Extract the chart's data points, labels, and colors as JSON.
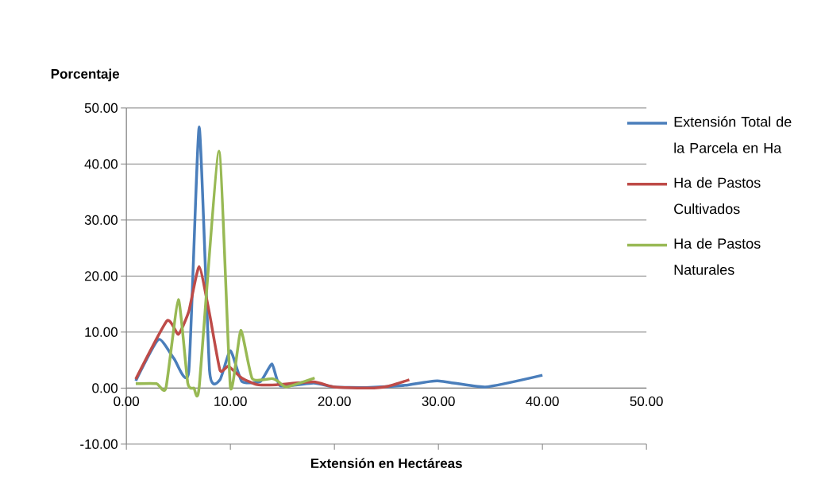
{
  "chart_data": {
    "type": "line",
    "xlabel": "Extensión en Hectáreas",
    "ylabel": "Porcentaje",
    "xlim": [
      0,
      50
    ],
    "ylim": [
      -10,
      50
    ],
    "xticks": [
      {
        "value": 0,
        "label": "0.00"
      },
      {
        "value": 10,
        "label": "10.00"
      },
      {
        "value": 20,
        "label": "20.00"
      },
      {
        "value": 30,
        "label": "30.00"
      },
      {
        "value": 40,
        "label": "40.00"
      },
      {
        "value": 50,
        "label": "50.00"
      }
    ],
    "yticks": [
      {
        "value": -10,
        "label": "-10.00"
      },
      {
        "value": 0,
        "label": "0.00"
      },
      {
        "value": 10,
        "label": "10.00"
      },
      {
        "value": 20,
        "label": "20.00"
      },
      {
        "value": 30,
        "label": "30.00"
      },
      {
        "value": 40,
        "label": "40.00"
      },
      {
        "value": 50,
        "label": "50.00"
      }
    ],
    "grid": "y",
    "legend": "right",
    "marker": "none",
    "line_style": "solid",
    "series": [
      {
        "name": "Extensión Total de la Parcela en Ha",
        "color": "#4a7ebb",
        "x": [
          0.9,
          3.1,
          4.6,
          6.0,
          7.0,
          8.0,
          9.0,
          10.0,
          11.1,
          12.9,
          14.0,
          14.8,
          18.0,
          20.0,
          23.0,
          26.8,
          29.9,
          34.5,
          40.0
        ],
        "values": [
          1.3,
          8.7,
          5.2,
          3.0,
          46.6,
          3.0,
          1.5,
          6.7,
          1.2,
          1.2,
          4.3,
          0.4,
          0.9,
          0.2,
          0.1,
          0.5,
          1.3,
          0.2,
          2.3
        ]
      },
      {
        "name": "Ha de Pastos Cultivados",
        "color": "#be4b48",
        "x": [
          0.9,
          3.9,
          5.0,
          6.0,
          7.0,
          8.0,
          9.0,
          9.8,
          11.1,
          12.6,
          14.4,
          18.0,
          20.0,
          23.3,
          25.1,
          27.2
        ],
        "values": [
          1.6,
          12.0,
          9.6,
          13.7,
          21.7,
          13.2,
          3.2,
          3.9,
          1.8,
          0.6,
          0.6,
          1.1,
          0.2,
          0.0,
          0.3,
          1.5
        ]
      },
      {
        "name": "Ha de Pastos Naturales",
        "color": "#98b954",
        "x": [
          0.9,
          2.9,
          3.8,
          5.0,
          5.9,
          6.5,
          7.0,
          8.9,
          10.0,
          11.0,
          12.1,
          14.0,
          14.6,
          15.4,
          18.1
        ],
        "values": [
          0.8,
          0.8,
          0.0,
          15.8,
          0.9,
          0.0,
          0.2,
          42.3,
          0.2,
          10.3,
          1.7,
          1.7,
          1.2,
          0.2,
          1.8
        ]
      }
    ]
  }
}
